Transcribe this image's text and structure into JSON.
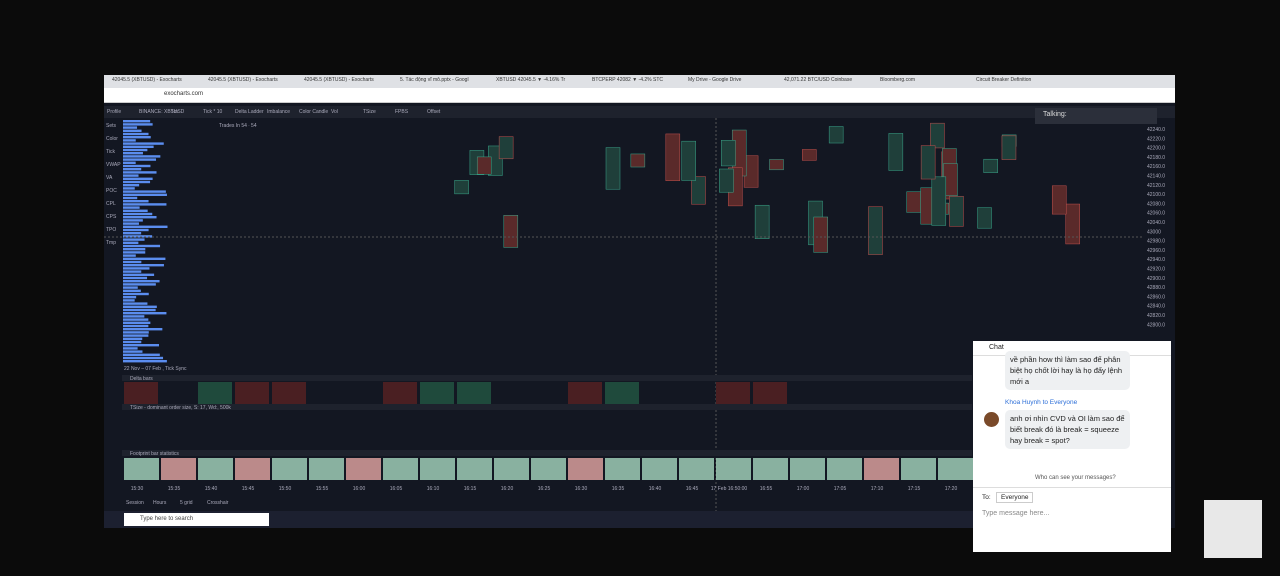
{
  "browser": {
    "tabs": [
      "42045.5 (XBTUSD) - Exocharts",
      "42045.5 (XBTUSD) - Exocharts",
      "42045.5 (XBTUSD) - Exocharts",
      "5. Tác động vĩ mô.pptx - Googl",
      "XBTUSD 42045.5 ▼ -4.16% Tr",
      "BTCPERP 42082 ▼ -4.2% STC",
      "My Drive - Google Drive",
      "42,071.22 BTC/USD Coinbase",
      "Bloomberg.com",
      "Circuit Breaker Definition"
    ],
    "url": "exocharts.com"
  },
  "toolbar": [
    "Profile",
    "BINANCE: XBTUSD",
    "5m",
    "Tick * 10",
    "Delta Ladder",
    "Imbalance",
    "Color Candle",
    "Vol",
    "TSize",
    "FPBS",
    "Offset"
  ],
  "side_menu": [
    "Sets",
    "Color",
    "Tick",
    "VWAP",
    "VA",
    "POC",
    "CPL",
    "CPS",
    "TPO",
    "Tmp"
  ],
  "chart": {
    "info": "Trades In 54 ∙ 54",
    "range": "22 Nov – 07 Feb , Tick Sync",
    "panels": [
      "Delta bars",
      "TSize - dominant order size, S: 17, Wd:, 500k",
      "Footprint bar statistics"
    ],
    "price_labels": [
      "42240.0",
      "42220.0",
      "42200.0",
      "42180.0",
      "42160.0",
      "42140.0",
      "42120.0",
      "42100.0",
      "42080.0",
      "42060.0",
      "42040.0",
      "43000",
      "42980.0",
      "42960.0",
      "42940.0",
      "42920.0",
      "42900.0",
      "42880.0",
      "42860.0",
      "42840.0",
      "42820.0",
      "42800.0"
    ],
    "time_labels": [
      "15:30",
      "15:35",
      "15:40",
      "15:45",
      "15:50",
      "15:55",
      "16:00",
      "16:05",
      "16:10",
      "16:15",
      "16:20",
      "16:25",
      "16:30",
      "16:35",
      "16:40",
      "16:45",
      "17 Feb 16:50:00",
      "16:55",
      "17:00",
      "17:05",
      "17:10",
      "17:15",
      "17:20"
    ],
    "bottom_tabs": [
      "Session",
      "Hours",
      "5 grid",
      "Crosshair"
    ]
  },
  "taskbar": {
    "search": "Type here to search"
  },
  "talking": "Talking:",
  "chat": {
    "title": "Chat",
    "messages": [
      {
        "text": "về phần how thì làm sao để phân biệt họ chốt lời hay là họ đẩy lệnh mới a"
      },
      {
        "sender": "Khoa Huynh to Everyone",
        "text": "anh ơi nhìn CVD và OI làm sao để biết break đó là break = squeeze hay break = spot?"
      }
    ],
    "privacy": "Who can see your messages?",
    "to_label": "To:",
    "to_value": "Everyone",
    "placeholder": "Type message here..."
  }
}
